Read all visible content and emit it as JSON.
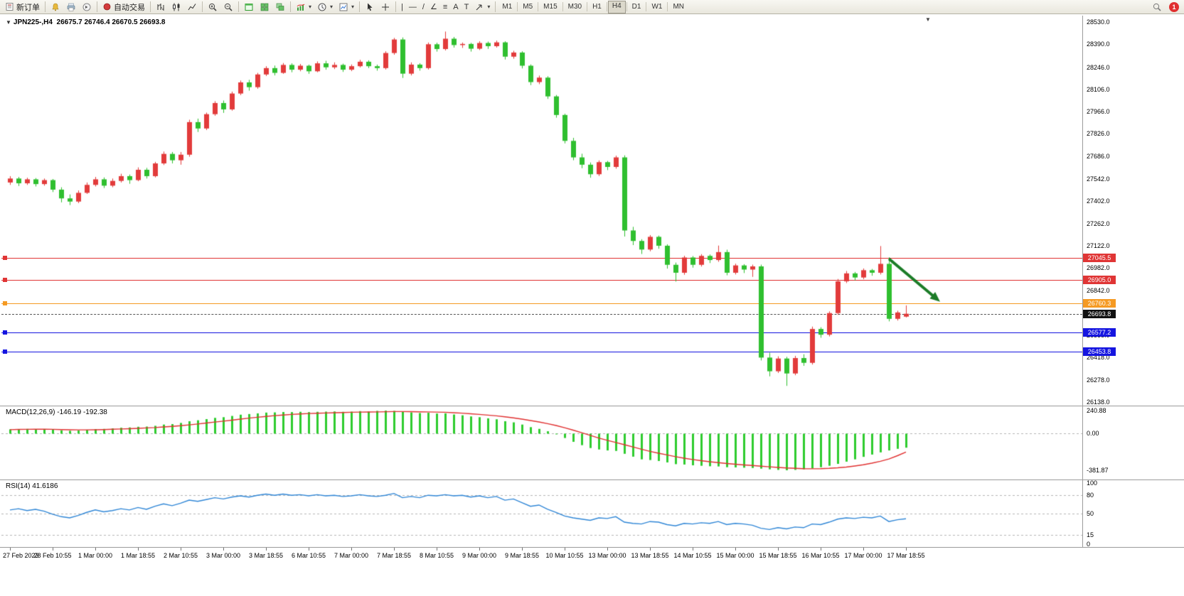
{
  "toolbar": {
    "new_order_label": "新订单",
    "auto_trading_label": "自动交易",
    "timeframes": [
      "M1",
      "M5",
      "M15",
      "M30",
      "H1",
      "H4",
      "D1",
      "W1",
      "MN"
    ],
    "active_timeframe": "H4",
    "notification_count": "1"
  },
  "icons": {
    "caret_down": "▾",
    "triangle_down": "▼",
    "vertical_line": "|",
    "horizontal_line": "—",
    "trend_line": "/",
    "channel": "∠",
    "fibonacci": "≡",
    "text_tool": "A",
    "label_tool": "T"
  },
  "chart": {
    "symbol_period": "JPN225-,H4",
    "ohlc_text": "26675.7 26746.4 26670.5 26693.8"
  },
  "price_scale": {
    "labels": [
      "28530.0",
      "28390.0",
      "28246.0",
      "28106.0",
      "27966.0",
      "27826.0",
      "27686.0",
      "27542.0",
      "27402.0",
      "27262.0",
      "27122.0",
      "26982.0",
      "26842.0",
      "26698.0",
      "26558.0",
      "26418.0",
      "26278.0",
      "26138.0"
    ]
  },
  "hlines": [
    {
      "label": "27045.5",
      "price": 27045.5,
      "color": "#e03535",
      "style": "solid"
    },
    {
      "label": "26905.0",
      "price": 26905.0,
      "color": "#e03535",
      "style": "solid"
    },
    {
      "label": "26760.3",
      "price": 26760.3,
      "color": "#f59a23",
      "style": "solid"
    },
    {
      "label": "26693.8",
      "price": 26693.8,
      "color": "#111111",
      "style": "bid"
    },
    {
      "label": "26577.2",
      "price": 26577.2,
      "color": "#1515e0",
      "style": "solid"
    },
    {
      "label": "26453.8",
      "price": 26453.8,
      "color": "#1515e0",
      "style": "solid"
    }
  ],
  "time_axis": {
    "labels": [
      "27 Feb 2023",
      "28 Feb 10:55",
      "1 Mar 00:00",
      "1 Mar 18:55",
      "2 Mar 10:55",
      "3 Mar 00:00",
      "3 Mar 18:55",
      "6 Mar 10:55",
      "7 Mar 00:00",
      "7 Mar 18:55",
      "8 Mar 10:55",
      "9 Mar 00:00",
      "9 Mar 18:55",
      "10 Mar 10:55",
      "13 Mar 00:00",
      "13 Mar 18:55",
      "14 Mar 10:55",
      "15 Mar 00:00",
      "15 Mar 18:55",
      "16 Mar 10:55",
      "17 Mar 00:00",
      "17 Mar 18:55"
    ]
  },
  "macd": {
    "label": "MACD(12,26,9) -146.19 -192.38",
    "scale": [
      {
        "label": "240.88",
        "value": 240.88
      },
      {
        "label": "0.00",
        "value": 0
      },
      {
        "label": "-381.87",
        "value": -381.87
      }
    ]
  },
  "rsi": {
    "label": "RSI(14) 41.6186",
    "scale": [
      {
        "label": "100",
        "value": 100
      },
      {
        "label": "80",
        "value": 80
      },
      {
        "label": "50",
        "value": 50
      },
      {
        "label": "15",
        "value": 15
      },
      {
        "label": "0",
        "value": 0
      }
    ]
  },
  "chart_data": {
    "type": "candlestick",
    "symbol": "JPN225-",
    "timeframe": "H4",
    "price_range": [
      26138.0,
      28530.0
    ],
    "colors": {
      "up": "#e23b3b",
      "down": "#2fbf2f",
      "macd_histogram": "#2ecc2e",
      "macd_signal": "#e03030",
      "rsi_line": "#2f86d6",
      "arrow": "#1c7c28"
    },
    "candles": [
      [
        27520,
        27560,
        27505,
        27545
      ],
      [
        27545,
        27555,
        27498,
        27515
      ],
      [
        27515,
        27550,
        27505,
        27540
      ],
      [
        27540,
        27548,
        27495,
        27510
      ],
      [
        27510,
        27545,
        27500,
        27535
      ],
      [
        27535,
        27542,
        27460,
        27475
      ],
      [
        27475,
        27490,
        27395,
        27420
      ],
      [
        27420,
        27445,
        27378,
        27400
      ],
      [
        27400,
        27470,
        27390,
        27455
      ],
      [
        27455,
        27520,
        27448,
        27505
      ],
      [
        27505,
        27555,
        27495,
        27540
      ],
      [
        27540,
        27552,
        27485,
        27500
      ],
      [
        27500,
        27545,
        27490,
        27530
      ],
      [
        27530,
        27575,
        27520,
        27560
      ],
      [
        27560,
        27570,
        27512,
        27535
      ],
      [
        27535,
        27615,
        27528,
        27600
      ],
      [
        27600,
        27612,
        27545,
        27560
      ],
      [
        27560,
        27650,
        27552,
        27640
      ],
      [
        27640,
        27715,
        27630,
        27700
      ],
      [
        27700,
        27712,
        27640,
        27660
      ],
      [
        27660,
        27712,
        27632,
        27695
      ],
      [
        27695,
        27915,
        27682,
        27900
      ],
      [
        27900,
        27922,
        27838,
        27860
      ],
      [
        27860,
        27960,
        27850,
        27950
      ],
      [
        27950,
        28032,
        27940,
        28020
      ],
      [
        28020,
        28036,
        27958,
        27980
      ],
      [
        27980,
        28092,
        27972,
        28080
      ],
      [
        28080,
        28162,
        28070,
        28150
      ],
      [
        28150,
        28166,
        28098,
        28120
      ],
      [
        28120,
        28210,
        28110,
        28200
      ],
      [
        28200,
        28252,
        28190,
        28240
      ],
      [
        28240,
        28256,
        28194,
        28210
      ],
      [
        28210,
        28272,
        28204,
        28260
      ],
      [
        28260,
        28270,
        28214,
        28230
      ],
      [
        28230,
        28266,
        28220,
        28255
      ],
      [
        28255,
        28262,
        28204,
        28220
      ],
      [
        28220,
        28282,
        28214,
        28270
      ],
      [
        28270,
        28286,
        28230,
        28245
      ],
      [
        28245,
        28276,
        28234,
        28260
      ],
      [
        28260,
        28268,
        28216,
        28230
      ],
      [
        28230,
        28263,
        28221,
        28252
      ],
      [
        28252,
        28292,
        28244,
        28280
      ],
      [
        28280,
        28289,
        28240,
        28252
      ],
      [
        28252,
        28262,
        28224,
        28240
      ],
      [
        28240,
        28346,
        28231,
        28335
      ],
      [
        28335,
        28430,
        28324,
        28420
      ],
      [
        28420,
        28433,
        28178,
        28205
      ],
      [
        28205,
        28276,
        28194,
        28262
      ],
      [
        28262,
        28271,
        28224,
        28240
      ],
      [
        28240,
        28401,
        28231,
        28390
      ],
      [
        28390,
        28400,
        28344,
        28360
      ],
      [
        28360,
        28470,
        28351,
        28425
      ],
      [
        28425,
        28436,
        28369,
        28385
      ],
      [
        28385,
        28401,
        28367,
        28392
      ],
      [
        28392,
        28399,
        28344,
        28362
      ],
      [
        28362,
        28409,
        28354,
        28398
      ],
      [
        28398,
        28407,
        28361,
        28378
      ],
      [
        28378,
        28413,
        28369,
        28402
      ],
      [
        28402,
        28409,
        28294,
        28312
      ],
      [
        28312,
        28349,
        28299,
        28338
      ],
      [
        28338,
        28346,
        28238,
        28255
      ],
      [
        28255,
        28263,
        28133,
        28152
      ],
      [
        28152,
        28193,
        28139,
        28180
      ],
      [
        28180,
        28189,
        28046,
        28062
      ],
      [
        28062,
        28071,
        27928,
        27945
      ],
      [
        27945,
        27953,
        27766,
        27782
      ],
      [
        27782,
        27801,
        27660,
        27678
      ],
      [
        27678,
        27701,
        27610,
        27632
      ],
      [
        27632,
        27646,
        27550,
        27572
      ],
      [
        27572,
        27659,
        27561,
        27648
      ],
      [
        27648,
        27656,
        27598,
        27618
      ],
      [
        27618,
        27689,
        27607,
        27678
      ],
      [
        27678,
        27691,
        27180,
        27218
      ],
      [
        27218,
        27241,
        27126,
        27152
      ],
      [
        27152,
        27163,
        27070,
        27098
      ],
      [
        27098,
        27189,
        27087,
        27178
      ],
      [
        27178,
        27186,
        27103,
        27122
      ],
      [
        27122,
        27131,
        26978,
        27002
      ],
      [
        27002,
        27016,
        26896,
        26952
      ],
      [
        26952,
        27059,
        26939,
        27048
      ],
      [
        27048,
        27057,
        26984,
        27002
      ],
      [
        27002,
        27069,
        26991,
        27058
      ],
      [
        27058,
        27067,
        27013,
        27032
      ],
      [
        27032,
        27123,
        27021,
        27082
      ],
      [
        27082,
        27097,
        26936,
        26952
      ],
      [
        26952,
        27009,
        26941,
        26998
      ],
      [
        26998,
        27006,
        26950,
        26972
      ],
      [
        26972,
        27003,
        26926,
        26992
      ],
      [
        26992,
        27003,
        26400,
        26418
      ],
      [
        26418,
        26449,
        26300,
        26332
      ],
      [
        26332,
        26426,
        26321,
        26412
      ],
      [
        26412,
        26423,
        26240,
        26318
      ],
      [
        26318,
        26429,
        26307,
        26415
      ],
      [
        26415,
        26439,
        26366,
        26385
      ],
      [
        26385,
        26613,
        26374,
        26598
      ],
      [
        26598,
        26609,
        26543,
        26562
      ],
      [
        26562,
        26709,
        26551,
        26698
      ],
      [
        26698,
        26913,
        26687,
        26898
      ],
      [
        26898,
        26963,
        26887,
        26948
      ],
      [
        26948,
        26957,
        26903,
        26922
      ],
      [
        26922,
        26979,
        26911,
        26968
      ],
      [
        26968,
        26976,
        26933,
        26952
      ],
      [
        26952,
        27120,
        26941,
        27008
      ],
      [
        27008,
        27049,
        26646,
        26662
      ],
      [
        26662,
        26713,
        26651,
        26702
      ],
      [
        26675.7,
        26746.4,
        26670.5,
        26693.8
      ]
    ],
    "indicators": {
      "macd": {
        "params": "12,26,9",
        "main_last": -146.19,
        "signal_last": -192.38,
        "range": [
          -381.87,
          240.88
        ],
        "histogram": [
          45,
          48,
          50,
          47,
          49,
          42,
          35,
          30,
          33,
          40,
          48,
          50,
          55,
          62,
          65,
          72,
          74,
          82,
          95,
          100,
          112,
          130,
          140,
          152,
          165,
          172,
          185,
          198,
          205,
          212,
          220,
          222,
          226,
          225,
          228,
          225,
          228,
          230,
          232,
          228,
          230,
          235,
          232,
          238,
          240.9,
          238,
          228,
          222,
          215,
          218,
          210,
          212,
          200,
          192,
          180,
          172,
          160,
          150,
          130,
          118,
          95,
          68,
          50,
          25,
          -5,
          -45,
          -85,
          -120,
          -150,
          -165,
          -175,
          -180,
          -210,
          -240,
          -268,
          -275,
          -285,
          -300,
          -318,
          -322,
          -330,
          -335,
          -340,
          -342,
          -350,
          -352,
          -355,
          -358,
          -365,
          -372,
          -378,
          -381.9,
          -378,
          -372,
          -362,
          -350,
          -335,
          -315,
          -292,
          -268,
          -242,
          -218,
          -195,
          -175,
          -158,
          -146.2
        ],
        "signal": [
          42,
          44,
          45,
          46,
          46,
          45,
          43,
          41,
          40,
          40,
          41,
          43,
          46,
          49,
          52,
          56,
          60,
          64,
          70,
          76,
          83,
          92,
          101,
          111,
          121,
          131,
          141,
          152,
          162,
          171,
          180,
          188,
          195,
          201,
          206,
          210,
          213,
          216,
          219,
          221,
          223,
          225,
          226,
          227,
          229,
          231,
          231,
          230,
          228,
          227,
          225,
          223,
          219,
          214,
          208,
          201,
          194,
          186,
          176,
          165,
          152,
          137,
          122,
          105,
          85,
          62,
          37,
          10,
          -18,
          -45,
          -70,
          -92,
          -115,
          -138,
          -162,
          -184,
          -204,
          -222,
          -240,
          -256,
          -270,
          -282,
          -293,
          -302,
          -311,
          -319,
          -326,
          -332,
          -339,
          -346,
          -352,
          -358,
          -362,
          -365,
          -366,
          -365,
          -362,
          -356,
          -348,
          -337,
          -324,
          -308,
          -288,
          -264,
          -230,
          -192.4
        ]
      },
      "rsi": {
        "period": 14,
        "last": 41.6186,
        "range": [
          0,
          100
        ],
        "levels": [
          80,
          50,
          15
        ],
        "values": [
          56,
          58,
          55,
          57,
          54,
          49,
          45,
          43,
          47,
          52,
          56,
          53,
          55,
          58,
          56,
          60,
          57,
          62,
          66,
          63,
          67,
          72,
          70,
          73,
          76,
          74,
          77,
          79,
          77,
          80,
          82,
          80,
          82,
          80,
          81,
          79,
          81,
          79,
          80,
          78,
          79,
          81,
          79,
          78,
          80,
          83,
          76,
          78,
          76,
          80,
          79,
          81,
          79,
          80,
          77,
          79,
          76,
          78,
          72,
          74,
          68,
          62,
          64,
          57,
          52,
          46,
          43,
          41,
          39,
          43,
          42,
          45,
          36,
          34,
          33,
          37,
          36,
          32,
          30,
          34,
          33,
          35,
          34,
          37,
          32,
          34,
          33,
          31,
          26,
          24,
          27,
          25,
          28,
          27,
          33,
          32,
          36,
          41,
          43,
          42,
          44,
          43,
          46,
          37,
          40,
          41.6
        ]
      }
    },
    "arrow_annotation": {
      "direction": "down-right",
      "color": "#1c7c28",
      "from": {
        "time_index": 103,
        "price": 27040
      },
      "to": {
        "time_index": 109,
        "price": 26770
      }
    }
  }
}
